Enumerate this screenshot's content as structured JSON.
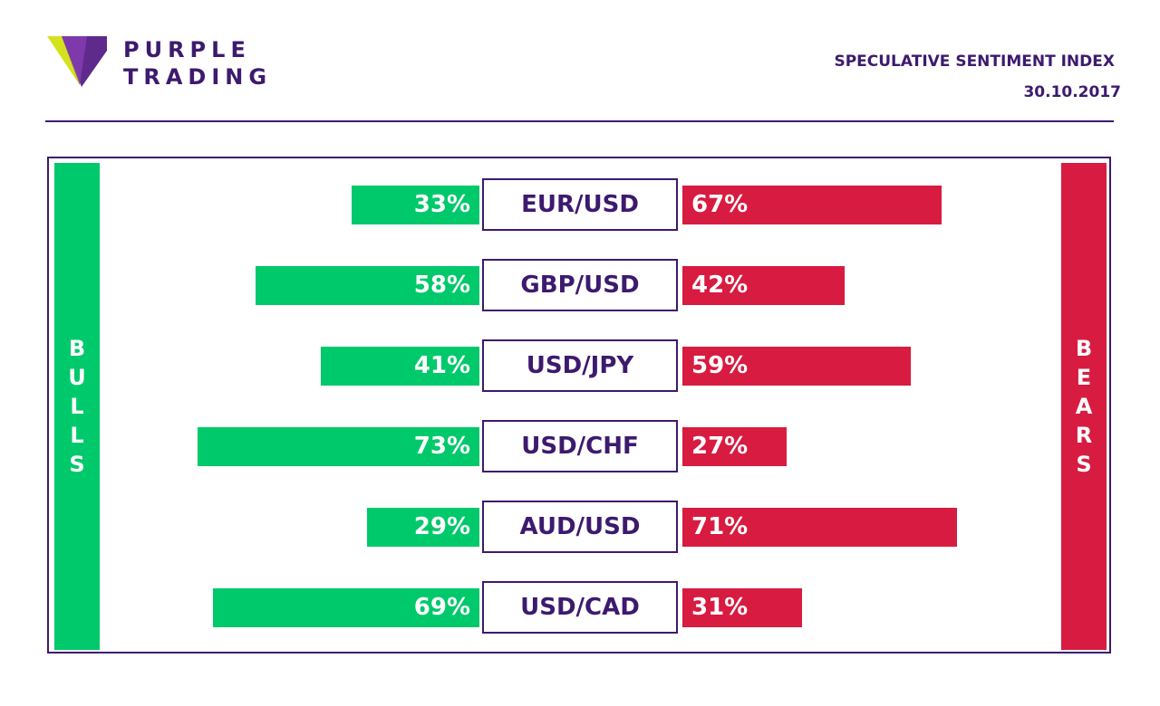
{
  "header": {
    "brand_line1": "PURPLE",
    "brand_line2": "TRADING",
    "title": "SPECULATIVE SENTIMENT INDEX",
    "date": "30.10.2017"
  },
  "colors": {
    "brand": "#3d1a6e",
    "bulls": "#00c96b",
    "bears": "#d81b40",
    "logo_yellow": "#d4e21b",
    "logo_purple": "#5e2a8c"
  },
  "side_labels": {
    "bulls": "BULLS",
    "bears": "BEARS"
  },
  "chart_data": {
    "type": "bar",
    "categories": [
      "EUR/USD",
      "GBP/USD",
      "USD/JPY",
      "USD/CHF",
      "AUD/USD",
      "USD/CAD"
    ],
    "series": [
      {
        "name": "BULLS",
        "values": [
          33,
          58,
          41,
          73,
          29,
          69
        ]
      },
      {
        "name": "BEARS",
        "values": [
          67,
          42,
          59,
          27,
          71,
          31
        ]
      }
    ],
    "value_labels": {
      "bulls": [
        "33%",
        "58%",
        "41%",
        "73%",
        "29%",
        "69%"
      ],
      "bears": [
        "67%",
        "42%",
        "59%",
        "27%",
        "71%",
        "31%"
      ]
    },
    "ylim": [
      0,
      100
    ]
  }
}
